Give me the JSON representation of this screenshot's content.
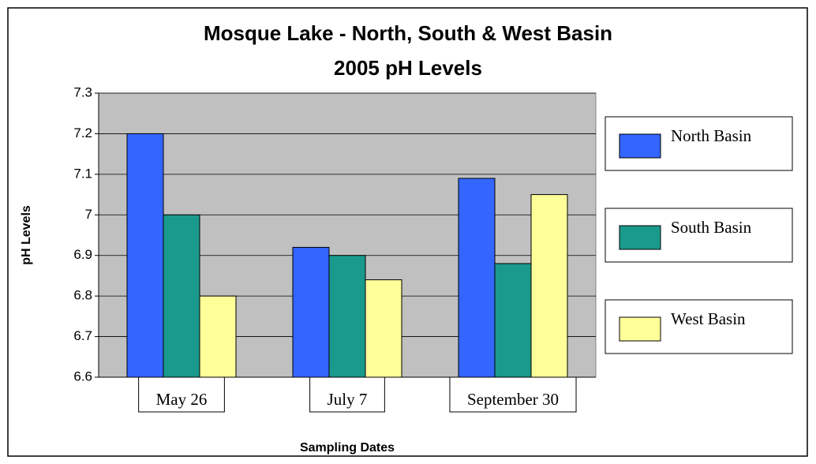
{
  "chart_data": {
    "type": "bar",
    "title": "Mosque Lake - North, South & West Basin",
    "subtitle": "2005 pH Levels",
    "y_label": "pH Levels",
    "x_label": "Sampling Dates",
    "categories": [
      "May 26",
      "July 7",
      "September 30"
    ],
    "series": [
      {
        "name": "North Basin",
        "color": "#3366ff",
        "values": [
          7.2,
          6.92,
          7.09
        ]
      },
      {
        "name": "South Basin",
        "color": "#1a9a8c",
        "values": [
          7.0,
          6.9,
          6.88
        ]
      },
      {
        "name": "West Basin",
        "color": "#ffff99",
        "values": [
          6.8,
          6.84,
          7.05
        ]
      }
    ],
    "ylim": [
      6.6,
      7.3
    ],
    "yticks": [
      6.6,
      6.7,
      6.8,
      6.9,
      7,
      7.1,
      7.2,
      7.3
    ],
    "grid": true,
    "legend": "right",
    "plot_background": "#c0c0c0"
  }
}
